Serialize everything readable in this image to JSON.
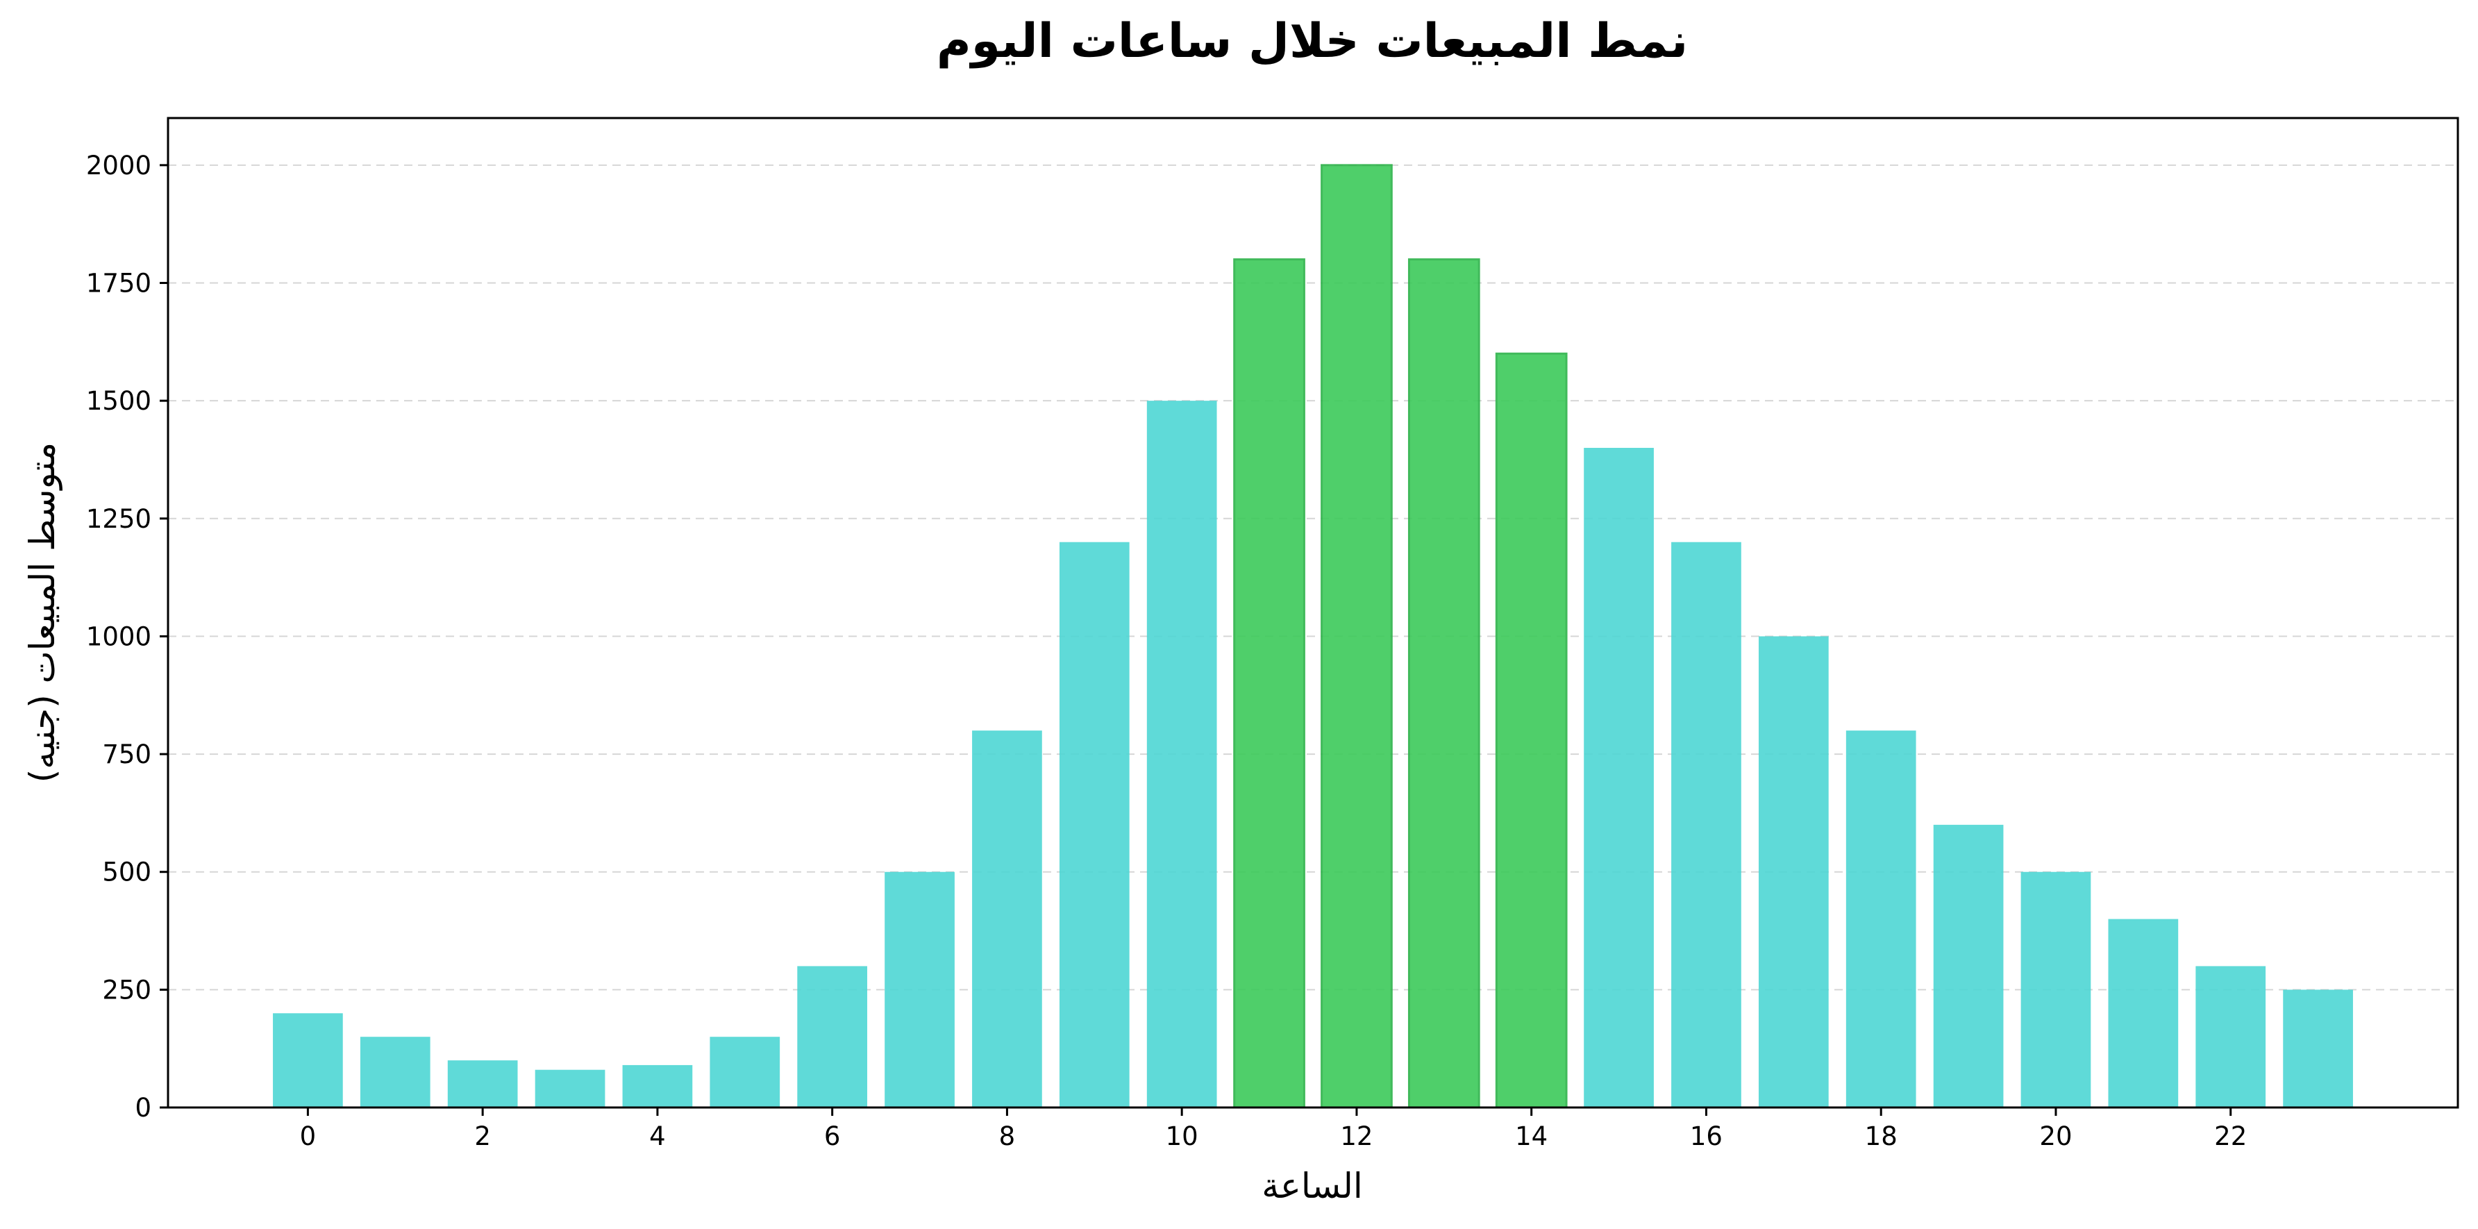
{
  "chart_data": {
    "type": "bar",
    "title": "نمط المبيعات خلال ساعات اليوم",
    "xlabel": "الساعة",
    "ylabel": "متوسط المبيعات (جنيه)",
    "categories": [
      0,
      1,
      2,
      3,
      4,
      5,
      6,
      7,
      8,
      9,
      10,
      11,
      12,
      13,
      14,
      15,
      16,
      17,
      18,
      19,
      20,
      21,
      22,
      23
    ],
    "values": [
      200,
      150,
      100,
      80,
      90,
      150,
      300,
      500,
      800,
      1200,
      1500,
      1800,
      2000,
      1800,
      1600,
      1400,
      1200,
      1000,
      800,
      600,
      500,
      400,
      300,
      250
    ],
    "peak_hours": [
      11,
      12,
      13,
      14
    ],
    "x_ticks": [
      0,
      2,
      4,
      6,
      8,
      10,
      12,
      14,
      16,
      18,
      20,
      22
    ],
    "y_ticks": [
      0,
      250,
      500,
      750,
      1000,
      1250,
      1500,
      1750,
      2000
    ],
    "ylim": [
      0,
      2100
    ],
    "xlim": [
      -1.6,
      24.6
    ],
    "grid": "y-dashed",
    "colors": {
      "normal": "#4ed6d4",
      "peak": "#3dca5a",
      "peak_edge": "#2db34a"
    }
  }
}
